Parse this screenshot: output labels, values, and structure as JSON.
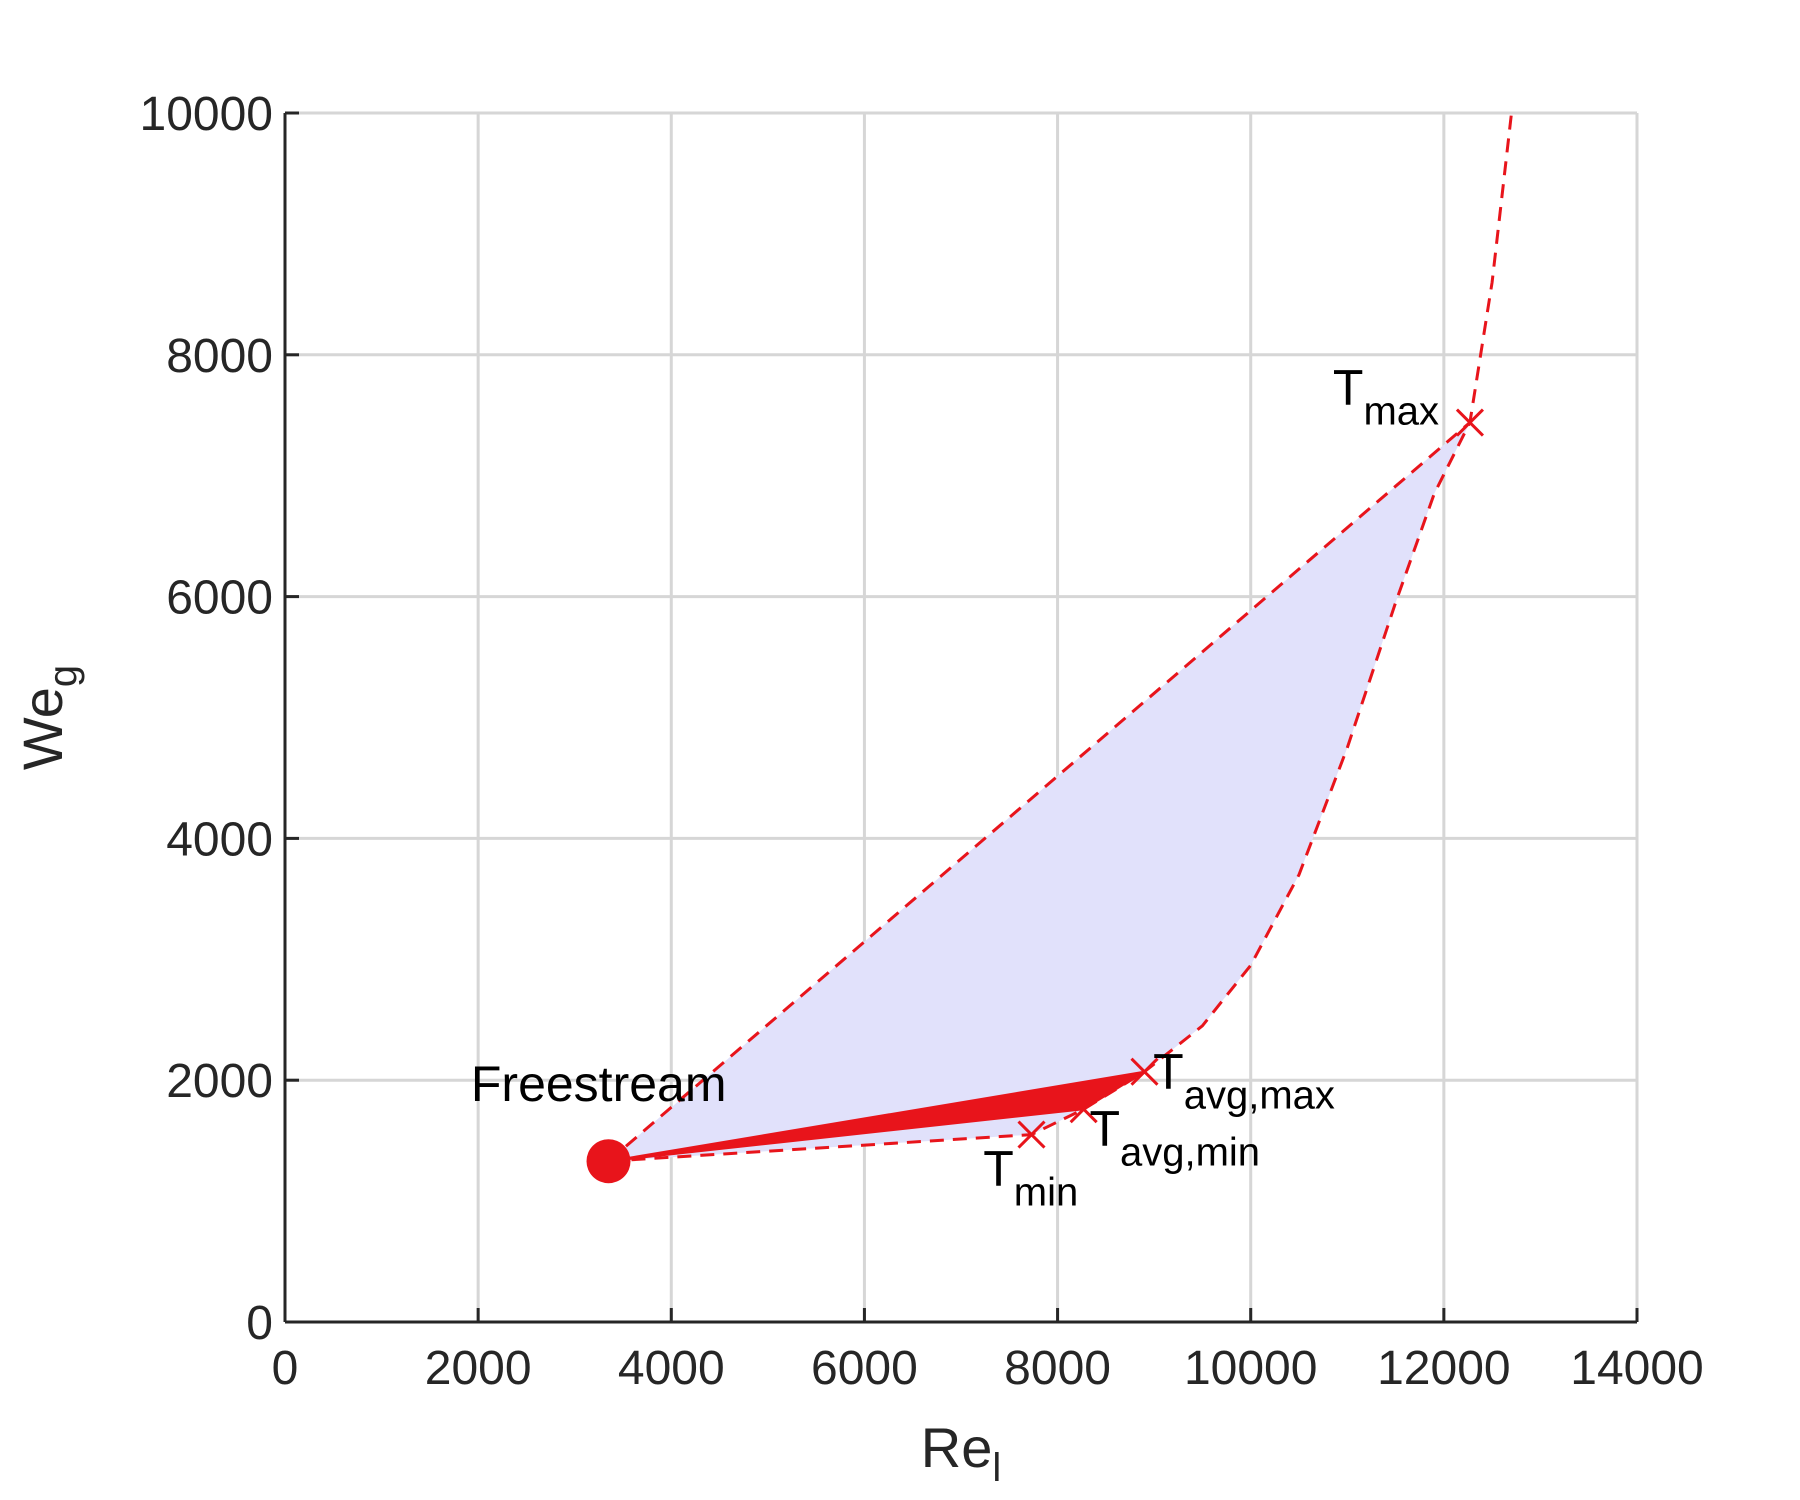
{
  "chart_data": {
    "type": "line",
    "title": "",
    "xlabel": {
      "main": "Re",
      "sub": "l"
    },
    "ylabel": {
      "main": "We",
      "sub": "g"
    },
    "xlim": [
      0,
      14000
    ],
    "ylim": [
      0,
      10000
    ],
    "xticks": [
      0,
      2000,
      4000,
      6000,
      8000,
      10000,
      12000,
      14000
    ],
    "yticks": [
      0,
      2000,
      4000,
      6000,
      8000,
      10000
    ],
    "xtick_labels": [
      "0",
      "2000",
      "4000",
      "6000",
      "8000",
      "10000",
      "12000",
      "14000"
    ],
    "ytick_labels": [
      "0",
      "2000",
      "4000",
      "6000",
      "8000",
      "10000"
    ],
    "grid": true,
    "colors": {
      "curve": "#e8141b",
      "fill": "#e1e1fb",
      "axis": "#262626",
      "grid": "#d6d6d6"
    },
    "freestream": {
      "label": "Freestream",
      "x": 3350,
      "y": 1330
    },
    "state_curve": {
      "style": "dashed",
      "points": [
        [
          3350,
          1330
        ],
        [
          7730,
          1550
        ],
        [
          8270,
          1760
        ],
        [
          8900,
          2070
        ],
        [
          9500,
          2450
        ],
        [
          10000,
          2950
        ],
        [
          10500,
          3700
        ],
        [
          11000,
          4750
        ],
        [
          11500,
          5950
        ],
        [
          11900,
          6850
        ],
        [
          12270,
          7440
        ],
        [
          12500,
          8600
        ],
        [
          12700,
          10000
        ]
      ]
    },
    "upper_line": {
      "style": "dashed",
      "points": [
        [
          3350,
          1330
        ],
        [
          12270,
          7440
        ]
      ]
    },
    "shaded_region": {
      "points": [
        [
          3350,
          1330
        ],
        [
          7730,
          1550
        ],
        [
          8270,
          1760
        ],
        [
          8900,
          2070
        ],
        [
          9500,
          2450
        ],
        [
          10000,
          2950
        ],
        [
          10500,
          3700
        ],
        [
          11000,
          4750
        ],
        [
          11500,
          5950
        ],
        [
          11900,
          6850
        ],
        [
          12270,
          7440
        ]
      ]
    },
    "solid_wedge": {
      "points": [
        [
          3350,
          1330
        ],
        [
          8900,
          2070
        ],
        [
          8270,
          1760
        ]
      ]
    },
    "markers": [
      {
        "name": "t-min",
        "main": "T",
        "sub": "min",
        "x": 7730,
        "y": 1550,
        "label_dx": -5,
        "label_dy": 4.2,
        "anchor": "start"
      },
      {
        "name": "t-avg-min",
        "main": "T",
        "sub": "avg,min",
        "x": 8270,
        "y": 1760,
        "label_dx": 0.6,
        "label_dy": 3.0,
        "anchor": "start"
      },
      {
        "name": "t-avg-max",
        "main": "T",
        "sub": "avg,max",
        "x": 8900,
        "y": 2070,
        "label_dx": 0.9,
        "label_dy": 1.4,
        "anchor": "start"
      },
      {
        "name": "t-max",
        "main": "T",
        "sub": "max",
        "x": 12270,
        "y": 7440,
        "label_dx": -3.2,
        "label_dy": -1.5,
        "anchor": "end"
      }
    ]
  }
}
